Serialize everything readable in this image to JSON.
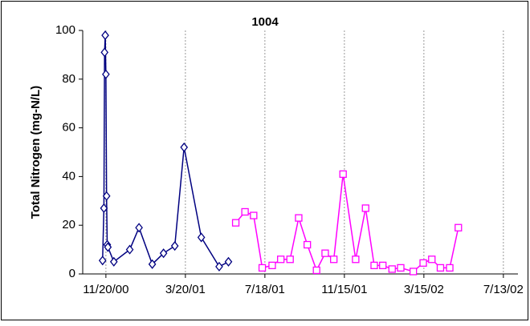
{
  "chart_data": {
    "type": "line",
    "title": "1004",
    "y_label": "Total Nitrogen (mg-N/L)",
    "xlim": [
      "10/16/00",
      "8/4/02"
    ],
    "xticks": [
      "11/20/00",
      "3/20/01",
      "7/18/01",
      "11/15/01",
      "3/15/02",
      "7/13/02"
    ],
    "ylim": [
      0,
      100
    ],
    "yticks": [
      0,
      20,
      40,
      60,
      80,
      100
    ],
    "grid": true,
    "series": [
      {
        "color": "#000080",
        "marker": "diamond",
        "x": [
          "11/15/00",
          "11/17/00",
          "11/18/00",
          "11/19/00",
          "11/20/00",
          "11/21/00",
          "11/22/00",
          "11/23/00",
          "12/2/00",
          "12/26/00",
          "1/9/01",
          "1/29/01",
          "2/15/01",
          "3/4/01",
          "3/18/01",
          "4/13/01",
          "5/10/01",
          "5/24/01"
        ],
        "values": [
          5.5,
          27,
          91,
          98,
          82,
          32,
          12,
          11,
          5,
          10,
          19,
          4,
          8.5,
          11.5,
          52,
          15,
          3,
          5
        ]
      },
      {
        "color": "#ff00ff",
        "marker": "square",
        "x": [
          "6/4/01",
          "6/18/01",
          "7/1/01",
          "7/14/01",
          "7/29/01",
          "8/11/01",
          "8/25/01",
          "9/7/01",
          "9/20/01",
          "10/4/01",
          "10/17/01",
          "10/30/01",
          "11/13/01",
          "12/2/01",
          "12/17/01",
          "12/30/01",
          "1/12/02",
          "1/26/02",
          "2/8/02",
          "2/27/02",
          "3/14/02",
          "3/27/02",
          "4/9/02",
          "4/23/02",
          "5/6/02"
        ],
        "values": [
          21,
          25.5,
          24,
          2.5,
          3.5,
          6,
          6,
          23,
          12,
          1.5,
          8.5,
          6,
          41,
          6,
          27,
          3.5,
          3.5,
          2,
          2.5,
          1,
          4.5,
          6,
          2.5,
          2.5,
          19
        ]
      }
    ]
  }
}
